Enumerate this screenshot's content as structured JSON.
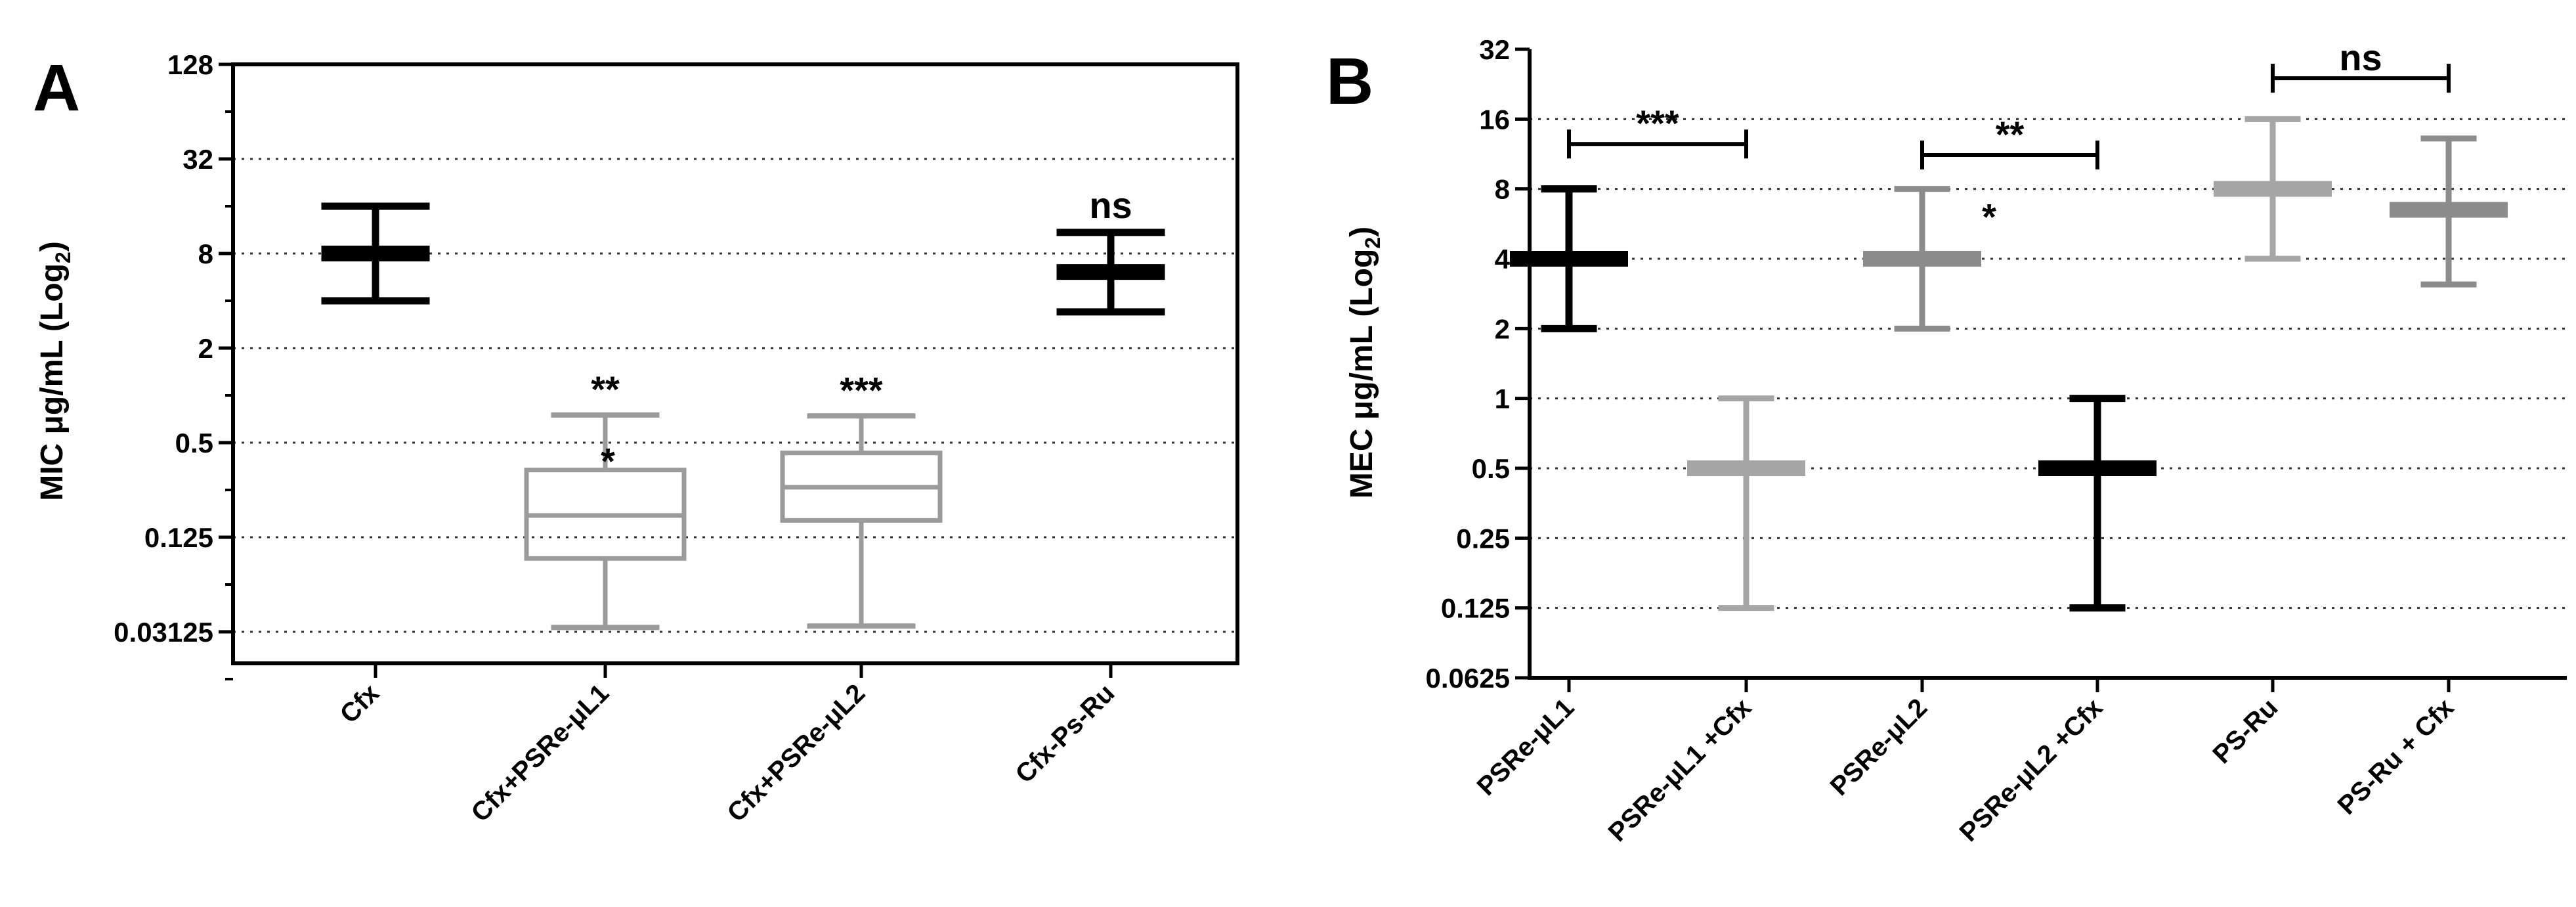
{
  "figure": {
    "panels": [
      "A",
      "B"
    ]
  },
  "chart_data": [
    {
      "panel": "A",
      "type": "box",
      "ylabel": "MIC μg/mL (Log",
      "ylabel_sub": "2",
      "ylabel_close": ")",
      "scale": "log2",
      "ylim": [
        0.015625,
        128
      ],
      "yticks": [
        {
          "value": 128,
          "label": "128"
        },
        {
          "value": 32,
          "label": "32"
        },
        {
          "value": 8,
          "label": "8"
        },
        {
          "value": 2,
          "label": "2"
        },
        {
          "value": 0.5,
          "label": "0.5"
        },
        {
          "value": 0.125,
          "label": "0.125"
        },
        {
          "value": 0.03125,
          "label": "0.03125"
        }
      ],
      "grid_values": [
        32,
        8,
        2,
        0.5,
        0.125,
        0.03125
      ],
      "categories": [
        "Cfx",
        "Cfx+PSRe-μL1",
        "Cfx+PSRe-μL2",
        "Cfx-Ps-Ru"
      ],
      "groups": [
        {
          "category": "Cfx",
          "kind": "bar",
          "color": "#000000",
          "min": 4,
          "q1": 8,
          "median": 8,
          "q3": 8,
          "max": 16
        },
        {
          "category": "Cfx+PSRe-μL1",
          "kind": "box",
          "color": "#9b9b9b",
          "min": 0.0333,
          "q1": 0.0916,
          "median": 0.172,
          "q3": 0.335,
          "max": 0.75,
          "annotations": [
            "**",
            "*"
          ]
        },
        {
          "category": "Cfx+PSRe-μL2",
          "kind": "box",
          "color": "#9b9b9b",
          "min": 0.034,
          "q1": 0.16,
          "median": 0.26,
          "q3": 0.43,
          "max": 0.74,
          "annotations": [
            "***"
          ]
        },
        {
          "category": "Cfx-Ps-Ru",
          "kind": "bar",
          "color": "#000000",
          "min": 3.4,
          "q1": 6.1,
          "median": 6.1,
          "q3": 6.1,
          "max": 10.9,
          "annotations": [
            "ns"
          ]
        }
      ]
    },
    {
      "panel": "B",
      "type": "box",
      "ylabel": "MEC μg/mL (Log",
      "ylabel_sub": "2",
      "ylabel_close": ")",
      "scale": "log2",
      "ylim": [
        0.0625,
        32
      ],
      "yticks": [
        {
          "value": 32,
          "label": "32"
        },
        {
          "value": 16,
          "label": "16"
        },
        {
          "value": 8,
          "label": "8"
        },
        {
          "value": 4,
          "label": "4"
        },
        {
          "value": 2,
          "label": "2"
        },
        {
          "value": 1,
          "label": "1"
        },
        {
          "value": 0.5,
          "label": "0.5"
        },
        {
          "value": 0.25,
          "label": "0.25"
        },
        {
          "value": 0.125,
          "label": "0.125"
        },
        {
          "value": 0.0625,
          "label": "0.0625"
        }
      ],
      "grid_values": [
        16,
        8,
        4,
        2,
        1,
        0.5,
        0.25,
        0.125
      ],
      "categories": [
        "PSRe-μL1",
        "PSRe-μL1 +Cfx",
        "PSRe-μL2",
        "PSRe-μL2 +Cfx",
        "PS-Ru",
        "PS-Ru + Cfx"
      ],
      "groups": [
        {
          "category": "PSRe-μL1",
          "kind": "bar",
          "color": "#000000",
          "min": 2,
          "median": 4,
          "max": 8
        },
        {
          "category": "PSRe-μL1 +Cfx",
          "kind": "bar",
          "color": "#a6a6a6",
          "min": 0.125,
          "median": 0.5,
          "max": 1
        },
        {
          "category": "PSRe-μL2",
          "kind": "bar",
          "color": "#8c8c8c",
          "min": 2,
          "median": 4,
          "max": 8,
          "annotations": [
            "*"
          ]
        },
        {
          "category": "PSRe-μL2 +Cfx",
          "kind": "bar",
          "color": "#000000",
          "min": 0.125,
          "median": 0.5,
          "max": 1
        },
        {
          "category": "PS-Ru",
          "kind": "bar",
          "color": "#a6a6a6",
          "min": 4,
          "median": 8,
          "max": 16
        },
        {
          "category": "PS-Ru + Cfx",
          "kind": "bar",
          "color": "#8c8c8c",
          "min": 3.1,
          "median": 6.5,
          "max": 13.2
        }
      ],
      "comparisons": [
        {
          "from": 0,
          "to": 1,
          "y": 12.5,
          "label": "***"
        },
        {
          "from": 2,
          "to": 3,
          "y": 11.2,
          "label": "**"
        },
        {
          "from": 4,
          "to": 5,
          "y": 24,
          "label": "ns"
        }
      ]
    }
  ]
}
